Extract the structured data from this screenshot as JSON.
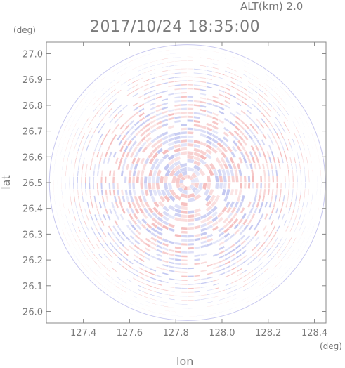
{
  "header": {
    "altitude_label": "ALT(km) 2.0",
    "timestamp": "2017/10/24 18:35:00"
  },
  "axes": {
    "lat_unit": "(deg)",
    "lon_unit": "(deg)",
    "ylabel": "lat",
    "xlabel": "lon"
  },
  "chart_data": {
    "type": "heatmap",
    "title": "2017/10/24 18:35:00",
    "xlabel": "lon",
    "ylabel": "lat",
    "xlim": [
      127.24,
      128.45
    ],
    "ylim": [
      25.955,
      27.045
    ],
    "x_ticks": [
      "127.4",
      "127.6",
      "127.8",
      "128.0",
      "128.2",
      "128.4"
    ],
    "x_tick_values": [
      127.4,
      127.6,
      127.8,
      128.0,
      128.2,
      128.4
    ],
    "y_ticks": [
      "26.0",
      "26.1",
      "26.2",
      "26.3",
      "26.4",
      "26.5",
      "26.6",
      "26.7",
      "26.8",
      "26.9",
      "27.0"
    ],
    "y_tick_values": [
      26.0,
      26.1,
      26.2,
      26.3,
      26.4,
      26.5,
      26.6,
      26.7,
      26.8,
      26.9,
      27.0
    ],
    "center": {
      "lon": 127.85,
      "lat": 26.5
    },
    "radius_deg": 0.535,
    "colors": {
      "positive": "#f4b8b8",
      "negative": "#bfc4f0",
      "neutral": "#ffffff",
      "frame": "#888888"
    }
  }
}
